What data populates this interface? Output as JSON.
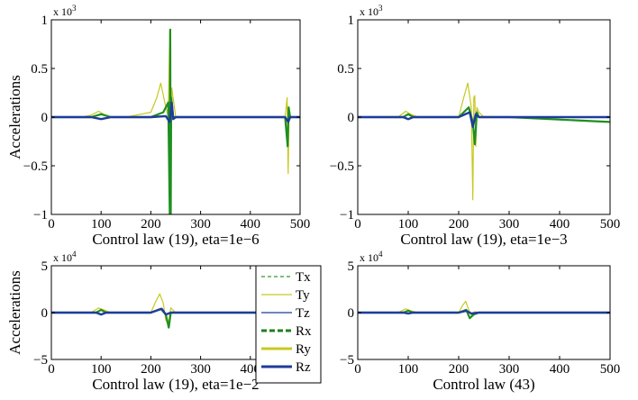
{
  "chart_data": [
    {
      "type": "line",
      "xlabel": "Control law (19), eta=1e−6",
      "ylabel": "Accelerations",
      "exponent": "x 10",
      "exponent_power": "3",
      "xlim": [
        0,
        500
      ],
      "ylim": [
        -1,
        1
      ],
      "xticks": [
        0,
        100,
        200,
        300,
        400,
        500
      ],
      "yticks": [
        -1,
        -0.5,
        0,
        0.5,
        1
      ],
      "xtick_labels": [
        "0",
        "100",
        "200",
        "300",
        "400",
        "500"
      ],
      "ytick_labels": [
        "−1",
        "−0.5",
        "0",
        "0.5",
        "1"
      ],
      "series": [
        {
          "name": "Ry",
          "x": [
            0,
            60,
            80,
            95,
            105,
            120,
            150,
            200,
            212,
            220,
            228,
            235,
            238,
            240,
            242,
            250,
            300,
            400,
            470,
            474,
            476,
            478,
            480,
            490,
            500
          ],
          "y": [
            0,
            0,
            0.02,
            0.06,
            0.03,
            0,
            0,
            0.05,
            0.2,
            0.35,
            0.15,
            0,
            0.9,
            -0.4,
            0.3,
            0,
            0,
            0,
            0,
            0.2,
            -0.58,
            0.1,
            0,
            0,
            0
          ]
        },
        {
          "name": "Rx",
          "x": [
            0,
            80,
            100,
            120,
            200,
            225,
            235,
            238,
            239,
            240,
            241,
            245,
            300,
            470,
            475,
            477,
            480,
            500
          ],
          "y": [
            0,
            0,
            0.03,
            0,
            0,
            0.05,
            0.15,
            -1,
            0.9,
            -1,
            0.2,
            0,
            0,
            0,
            -0.3,
            0.1,
            0,
            0
          ]
        },
        {
          "name": "Rz",
          "x": [
            0,
            80,
            100,
            120,
            200,
            230,
            238,
            242,
            245,
            250,
            300,
            470,
            476,
            480,
            500
          ],
          "y": [
            0,
            0,
            -0.02,
            0,
            0,
            0.01,
            -0.05,
            0.15,
            -0.02,
            0,
            0,
            0,
            -0.05,
            0,
            0
          ]
        }
      ]
    },
    {
      "type": "line",
      "xlabel": "Control law (19), eta=1e−3",
      "ylabel": "",
      "exponent": "x 10",
      "exponent_power": "3",
      "xlim": [
        0,
        500
      ],
      "ylim": [
        -1,
        1
      ],
      "xticks": [
        0,
        100,
        200,
        300,
        400,
        500
      ],
      "yticks": [
        -1,
        -0.5,
        0,
        0.5,
        1
      ],
      "xtick_labels": [
        "0",
        "100",
        "200",
        "300",
        "400",
        "500"
      ],
      "ytick_labels": [
        "−1",
        "−0.5",
        "0",
        "0.5",
        "1"
      ],
      "series": [
        {
          "name": "Ry",
          "x": [
            0,
            80,
            95,
            105,
            120,
            200,
            210,
            218,
            225,
            228,
            230,
            232,
            234,
            236,
            240,
            250,
            300,
            500
          ],
          "y": [
            0,
            0,
            0.06,
            0.03,
            0,
            0,
            0.2,
            0.35,
            0.1,
            -0.85,
            0.2,
            0.22,
            -0.3,
            0.1,
            0.05,
            0,
            0,
            0
          ]
        },
        {
          "name": "Rx",
          "x": [
            0,
            90,
            100,
            110,
            200,
            220,
            228,
            232,
            236,
            240,
            300,
            500
          ],
          "y": [
            0,
            0,
            0.03,
            0,
            0,
            0.1,
            -0.05,
            -0.28,
            0.05,
            0,
            0,
            -0.05
          ]
        },
        {
          "name": "Rz",
          "x": [
            0,
            90,
            100,
            110,
            200,
            222,
            228,
            234,
            240,
            300,
            500
          ],
          "y": [
            0,
            0,
            -0.02,
            0,
            0,
            0.05,
            -0.1,
            0.03,
            0,
            0,
            0
          ]
        }
      ]
    },
    {
      "type": "line",
      "xlabel": "Control law (19), eta=1e−2",
      "ylabel": "Accelerations",
      "exponent": "x 10",
      "exponent_power": "4",
      "xlim": [
        0,
        500
      ],
      "ylim": [
        -5,
        5
      ],
      "xticks": [
        0,
        100,
        200,
        300,
        400,
        500
      ],
      "yticks": [
        -5,
        0,
        5
      ],
      "xtick_labels": [
        "0",
        "100",
        "200",
        "300",
        "400",
        "500"
      ],
      "ytick_labels": [
        "−5",
        "0",
        "5"
      ],
      "series": [
        {
          "name": "Ry",
          "x": [
            0,
            80,
            95,
            105,
            120,
            200,
            210,
            218,
            225,
            230,
            235,
            240,
            250,
            300,
            500
          ],
          "y": [
            0,
            0,
            0.5,
            0.3,
            0,
            0,
            1.2,
            2.0,
            1.0,
            -0.8,
            -1.2,
            0.5,
            0,
            0,
            0
          ]
        },
        {
          "name": "Rx",
          "x": [
            0,
            90,
            100,
            110,
            200,
            220,
            230,
            236,
            240,
            300,
            500
          ],
          "y": [
            0,
            0,
            0.3,
            0,
            0,
            0.4,
            -0.2,
            -1.6,
            0,
            0,
            0
          ]
        },
        {
          "name": "Rz",
          "x": [
            0,
            90,
            100,
            110,
            200,
            222,
            230,
            240,
            300,
            500
          ],
          "y": [
            0,
            0,
            -0.2,
            0,
            0,
            0.4,
            -0.2,
            0,
            0,
            0
          ]
        }
      ]
    },
    {
      "type": "line",
      "xlabel": "Control law (43)",
      "ylabel": "",
      "exponent": "x 10",
      "exponent_power": "4",
      "xlim": [
        0,
        500
      ],
      "ylim": [
        -5,
        5
      ],
      "xticks": [
        0,
        100,
        200,
        300,
        400,
        500
      ],
      "yticks": [
        -5,
        0,
        5
      ],
      "xtick_labels": [
        "0",
        "100",
        "200",
        "300",
        "400",
        "500"
      ],
      "ytick_labels": [
        "−5",
        "0",
        "5"
      ],
      "series": [
        {
          "name": "Ry",
          "x": [
            0,
            80,
            95,
            105,
            120,
            200,
            208,
            214,
            220,
            226,
            232,
            240,
            300,
            500
          ],
          "y": [
            0,
            0,
            0.4,
            0.2,
            0,
            0,
            0.8,
            1.2,
            0.3,
            -0.4,
            0.1,
            0,
            0,
            0
          ]
        },
        {
          "name": "Rx",
          "x": [
            0,
            90,
            100,
            110,
            200,
            215,
            222,
            230,
            240,
            300,
            500
          ],
          "y": [
            0,
            0,
            0.2,
            0,
            0,
            0.3,
            -0.6,
            -0.2,
            0,
            0,
            0
          ]
        },
        {
          "name": "Rz",
          "x": [
            0,
            90,
            100,
            110,
            200,
            215,
            225,
            240,
            300,
            500
          ],
          "y": [
            0,
            0,
            -0.1,
            0,
            0,
            0.2,
            -0.1,
            0,
            0,
            0
          ]
        }
      ]
    }
  ],
  "legend": {
    "placement": "center",
    "entries": [
      {
        "label": "Tx",
        "color": "#2e9a2e",
        "style": "dashed-thin"
      },
      {
        "label": "Ty",
        "color": "#c8c820",
        "style": "solid-thin"
      },
      {
        "label": "Tz",
        "color": "#1f3c9a",
        "style": "solid-thin"
      },
      {
        "label": "Rx",
        "color": "#1f7f1f",
        "style": "dashed-thick"
      },
      {
        "label": "Ry",
        "color": "#c8c820",
        "style": "solid-thick"
      },
      {
        "label": "Rz",
        "color": "#1f3c9a",
        "style": "solid-thick"
      }
    ]
  },
  "colors": {
    "Ry": "#c8c820",
    "Rx": "#1f8f1f",
    "Rz": "#1f3c9a"
  }
}
